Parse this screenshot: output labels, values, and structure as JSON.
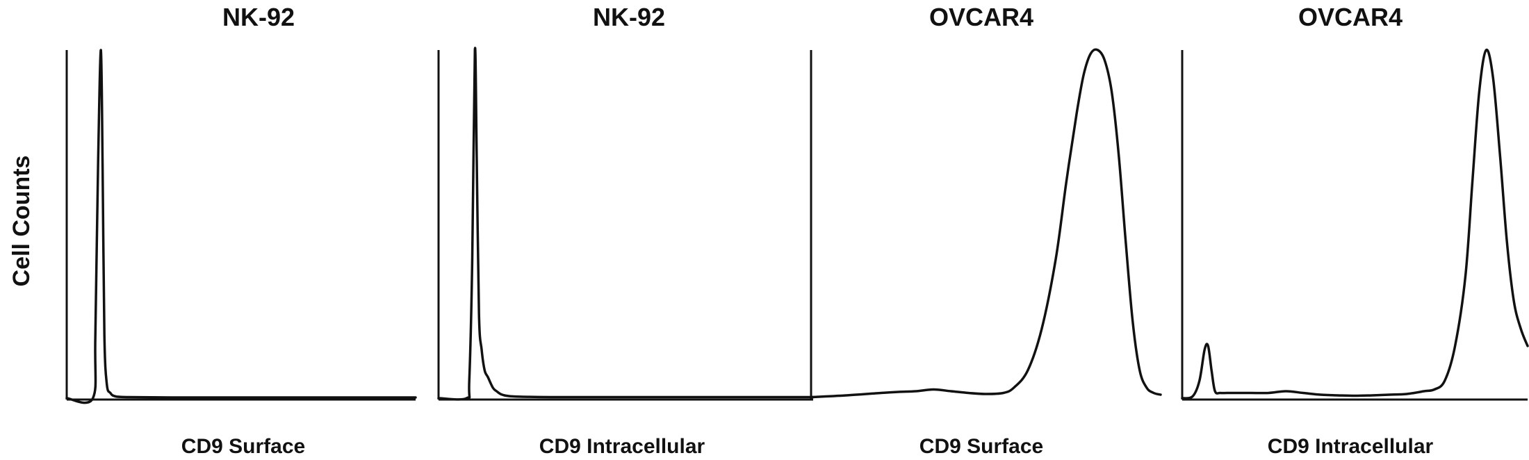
{
  "figure": {
    "ylabel": "Cell Counts"
  },
  "chart_data": [
    {
      "type": "line",
      "title": "NK-92",
      "xlabel": "CD9 Surface",
      "ylabel": "Cell Counts",
      "xlim": [
        0,
        100
      ],
      "ylim": [
        0,
        100
      ],
      "grid": false,
      "series": [
        {
          "name": "NK-92 CD9 Surface",
          "x": [
            0,
            7.5,
            8.2,
            9.0,
            9.8,
            10.3,
            10.8,
            11.5,
            12.5,
            14,
            18,
            30,
            50,
            75,
            100
          ],
          "y": [
            0,
            0,
            18,
            68,
            100,
            65,
            18,
            4,
            1.5,
            0.5,
            0.3,
            0.2,
            0.2,
            0.2,
            0.2
          ]
        }
      ]
    },
    {
      "type": "line",
      "title": "NK-92",
      "xlabel": "CD9 Intracellular",
      "ylabel": "",
      "xlim": [
        0,
        100
      ],
      "ylim": [
        0,
        100
      ],
      "grid": false,
      "series": [
        {
          "name": "NK-92 CD9 Intracellular",
          "x": [
            0,
            7.5,
            8.2,
            9.0,
            9.7,
            10.2,
            10.8,
            11.5,
            12.3,
            13.2,
            14.5,
            15.5,
            17,
            20,
            30,
            50,
            75,
            100
          ],
          "y": [
            0,
            0,
            5,
            40,
            100,
            68,
            24,
            14,
            8,
            6,
            3,
            2,
            1,
            0.5,
            0.3,
            0.3,
            0.3,
            0.3
          ]
        }
      ]
    },
    {
      "type": "line",
      "title": "OVCAR4",
      "xlabel": "CD9 Surface",
      "ylabel": "",
      "xlim": [
        0,
        100
      ],
      "ylim": [
        0,
        100
      ],
      "grid": false,
      "series": [
        {
          "name": "OVCAR4 CD9 Surface",
          "x": [
            0,
            10,
            20,
            25,
            30,
            35,
            40,
            45,
            50,
            55,
            58,
            62,
            66,
            70,
            73,
            76,
            78,
            80,
            82,
            84,
            86,
            88,
            90,
            92,
            94,
            96,
            98,
            100
          ],
          "y": [
            0.3,
            0.8,
            1.5,
            1.8,
            2.0,
            2.5,
            2.0,
            1.5,
            1.2,
            1.5,
            3,
            8,
            20,
            40,
            62,
            82,
            93,
            99,
            100,
            97,
            88,
            70,
            45,
            22,
            8,
            3,
            1.5,
            1
          ]
        }
      ]
    },
    {
      "type": "line",
      "title": "OVCAR4",
      "xlabel": "CD9 Intracellular",
      "ylabel": "",
      "xlim": [
        0,
        100
      ],
      "ylim": [
        0,
        100
      ],
      "grid": false,
      "series": [
        {
          "name": "OVCAR4 CD9 Intracellular",
          "x": [
            0,
            3,
            5,
            6.5,
            7.5,
            8.5,
            9.5,
            11,
            13,
            16,
            20,
            25,
            30,
            35,
            40,
            45,
            50,
            55,
            60,
            65,
            70,
            73,
            76,
            79,
            82,
            84,
            86,
            88,
            90,
            92,
            94,
            96,
            98,
            100
          ],
          "y": [
            0,
            0.5,
            5,
            14,
            15,
            8,
            2,
            1.5,
            1.5,
            1.5,
            1.5,
            1.5,
            2.0,
            1.5,
            1.0,
            0.8,
            0.7,
            0.8,
            1.0,
            1.2,
            2.0,
            2.5,
            5,
            15,
            35,
            62,
            88,
            100,
            92,
            70,
            45,
            28,
            20,
            15
          ]
        }
      ]
    }
  ]
}
